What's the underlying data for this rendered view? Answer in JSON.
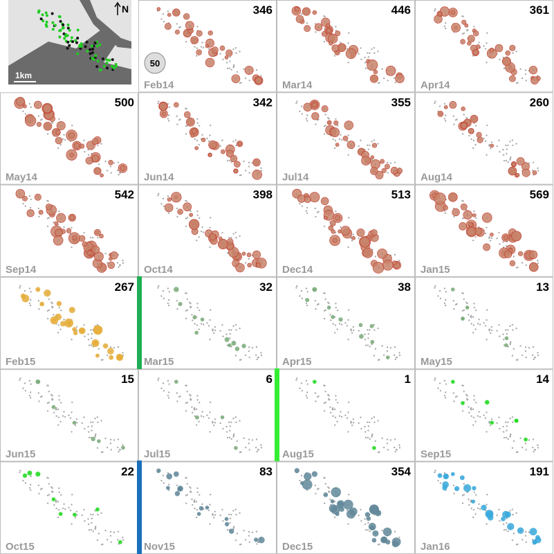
{
  "inset": {
    "north": "N",
    "scale": "1km"
  },
  "legend": {
    "label": "50"
  },
  "panels": [
    {
      "label": "Feb14",
      "count": 346,
      "color": "#c8836a"
    },
    {
      "label": "Mar14",
      "count": 446,
      "color": "#c8836a"
    },
    {
      "label": "Apr14",
      "count": 361,
      "color": "#c8836a"
    },
    {
      "label": "May14",
      "count": 500,
      "color": "#c8836a"
    },
    {
      "label": "Jun14",
      "count": 342,
      "color": "#c8836a"
    },
    {
      "label": "Jul14",
      "count": 355,
      "color": "#c8836a"
    },
    {
      "label": "Aug14",
      "count": 260,
      "color": "#c8836a"
    },
    {
      "label": "Sep14",
      "count": 542,
      "color": "#c8836a"
    },
    {
      "label": "Oct14",
      "count": 398,
      "color": "#c8836a"
    },
    {
      "label": "Dec14",
      "count": 513,
      "color": "#c8836a"
    },
    {
      "label": "Jan15",
      "count": 569,
      "color": "#c8836a"
    },
    {
      "label": "Feb15",
      "count": 267,
      "color": "#e6ae3c"
    },
    {
      "label": "Mar15",
      "count": 32,
      "color": "#7fae7f"
    },
    {
      "label": "Apr15",
      "count": 38,
      "color": "#7fae7f"
    },
    {
      "label": "May15",
      "count": 13,
      "color": "#7fae7f"
    },
    {
      "label": "Jun15",
      "count": 15,
      "color": "#7fae7f"
    },
    {
      "label": "Jul15",
      "count": 6,
      "color": "#7fae7f"
    },
    {
      "label": "Aug15",
      "count": 1,
      "color": "#22dd22"
    },
    {
      "label": "Sep15",
      "count": 14,
      "color": "#22dd22"
    },
    {
      "label": "Oct15",
      "count": 22,
      "color": "#22dd22"
    },
    {
      "label": "Nov15",
      "count": 83,
      "color": "#62889a"
    },
    {
      "label": "Dec15",
      "count": 354,
      "color": "#62889a"
    },
    {
      "label": "Jan16",
      "count": 191,
      "color": "#3aa9dc"
    }
  ]
}
